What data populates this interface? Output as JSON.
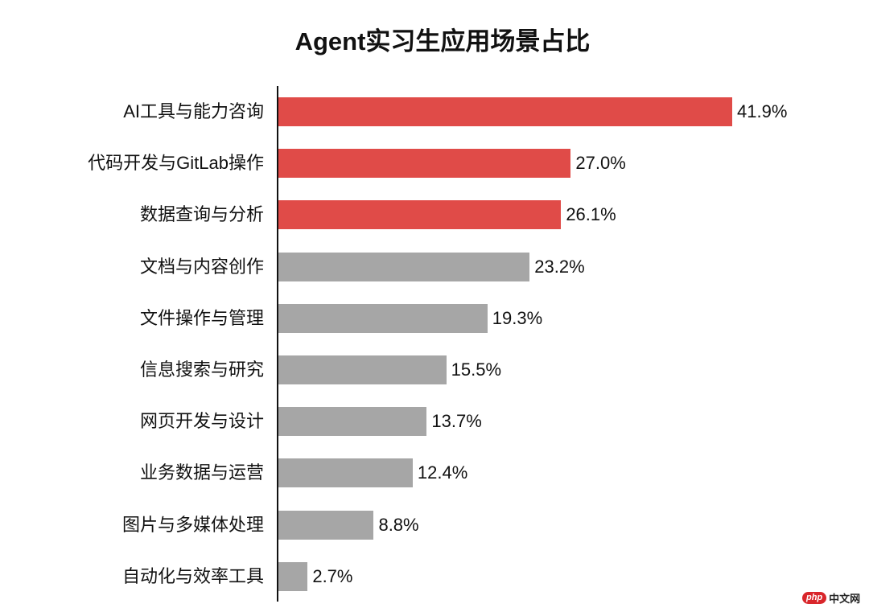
{
  "chart_data": {
    "type": "bar",
    "orientation": "horizontal",
    "title": "Agent实习生应用场景占比",
    "xlabel": "",
    "ylabel": "",
    "unit": "%",
    "grid": false,
    "legend": null,
    "categories": [
      "AI工具与能力咨询",
      "代码开发与GitLab操作",
      "数据查询与分析",
      "文档与内容创作",
      "文件操作与管理",
      "信息搜索与研究",
      "网页开发与设计",
      "业务数据与运营",
      "图片与多媒体处理",
      "自动化与效率工具"
    ],
    "values": [
      41.9,
      27.0,
      26.1,
      23.2,
      19.3,
      15.5,
      13.7,
      12.4,
      8.8,
      2.7
    ],
    "value_labels": [
      "41.9%",
      "27.0%",
      "26.1%",
      "23.2%",
      "19.3%",
      "15.5%",
      "13.7%",
      "12.4%",
      "8.8%",
      "2.7%"
    ],
    "highlight_colors": [
      "#e04b48",
      "#e04b48",
      "#e04b48",
      "#a6a6a6",
      "#a6a6a6",
      "#a6a6a6",
      "#a6a6a6",
      "#a6a6a6",
      "#a6a6a6",
      "#a6a6a6"
    ],
    "colors": {
      "highlight": "#e04b48",
      "default": "#a6a6a6"
    }
  },
  "watermark": {
    "brand": "php",
    "text": "中文网"
  }
}
